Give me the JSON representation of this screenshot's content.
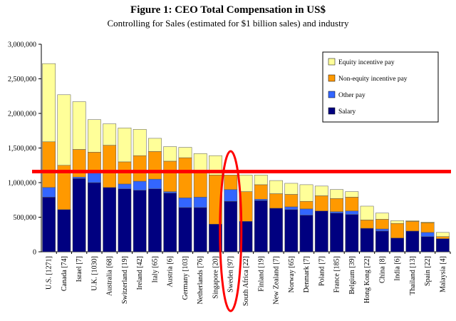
{
  "chart_data": {
    "type": "bar",
    "stacked": true,
    "title": "Figure 1: CEO Total Compensation in US$",
    "subtitle": "Controlling for Sales (estimated for $1 billion sales) and industry",
    "ylim": [
      0,
      3000000
    ],
    "yticks": [
      "0",
      "500,000",
      "1,000,000",
      "1,500,000",
      "2,000,000",
      "2,500,000",
      "3,000,000"
    ],
    "grid": false,
    "legend_position": "top-right",
    "categories": [
      "U.S. [1271]",
      "Canada [74]",
      "Israel [7]",
      "U.K. [1030]",
      "Australia [68]",
      "Switzerland [19]",
      "Ireland [42]",
      "Italy [65]",
      "Austria [6]",
      "Germany [103]",
      "Netherlands [76]",
      "Singapore [20]",
      "Sweden [97]",
      "South Africa [22]",
      "Finland [19]",
      "New Zealand [7]",
      "Norway [65]",
      "Denmark [7]",
      "Poland [7]",
      "France [185]",
      "Belgium [39]",
      "Hong Kong [22]",
      "China [8]",
      "India [6]",
      "Thailand [13]",
      "Spain [22]",
      "Malaysia [4]"
    ],
    "series": [
      {
        "name": "Salary",
        "color": "#000080",
        "values": [
          790000,
          610000,
          1060000,
          1000000,
          930000,
          910000,
          890000,
          910000,
          850000,
          640000,
          640000,
          400000,
          730000,
          440000,
          740000,
          630000,
          610000,
          530000,
          590000,
          560000,
          540000,
          340000,
          300000,
          200000,
          300000,
          220000,
          190000
        ]
      },
      {
        "name": "Other pay",
        "color": "#3366ff",
        "values": [
          140000,
          0,
          20000,
          150000,
          0,
          70000,
          130000,
          140000,
          20000,
          140000,
          150000,
          0,
          170000,
          0,
          20000,
          0,
          40000,
          90000,
          0,
          20000,
          50000,
          0,
          30000,
          0,
          0,
          60000,
          0
        ]
      },
      {
        "name": "Non-equity incentive pay",
        "color": "#ff9900",
        "values": [
          660000,
          640000,
          400000,
          290000,
          610000,
          320000,
          370000,
          400000,
          440000,
          580000,
          360000,
          710000,
          210000,
          430000,
          210000,
          210000,
          180000,
          110000,
          220000,
          190000,
          200000,
          120000,
          140000,
          210000,
          140000,
          140000,
          30000
        ]
      },
      {
        "name": "Equity incentive pay",
        "color": "#ffff99",
        "values": [
          1130000,
          1020000,
          690000,
          470000,
          310000,
          490000,
          380000,
          190000,
          210000,
          150000,
          270000,
          280000,
          0,
          240000,
          140000,
          190000,
          160000,
          240000,
          140000,
          130000,
          80000,
          200000,
          90000,
          40000,
          10000,
          10000,
          60000
        ]
      }
    ],
    "annotations": [
      {
        "type": "horizontal-line",
        "color": "#ff0000",
        "y": 1160000
      },
      {
        "type": "ellipse-highlight",
        "color": "#ff0000",
        "category": "Sweden [97]"
      }
    ]
  }
}
